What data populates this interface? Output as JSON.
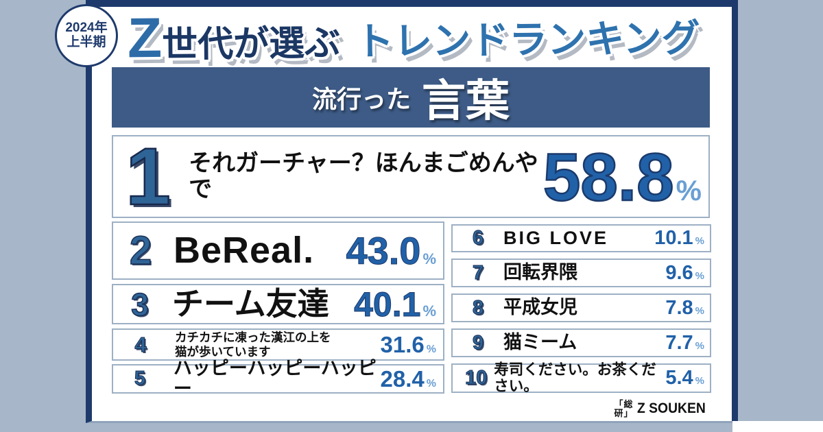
{
  "badge": {
    "line1": "2024年",
    "line2": "上半期"
  },
  "title": {
    "z": "Z",
    "dark": "世代が選ぶ",
    "light": "トレンドランキング"
  },
  "banner": {
    "prefix": "流行った",
    "main": "言葉"
  },
  "ranking": {
    "top": {
      "rank": "1",
      "label": "それガーチャー？ほんまごめんやで",
      "value": "58.8",
      "unit": "%"
    },
    "left": [
      {
        "rank": "2",
        "label": "BeReal.",
        "value": "43.0",
        "unit": "%"
      },
      {
        "rank": "3",
        "label": "チーム友達",
        "value": "40.1",
        "unit": "%"
      },
      {
        "rank": "4",
        "label": "カチカチに凍った漢江の上を",
        "label2": "猫が歩いています",
        "value": "31.6",
        "unit": "%"
      },
      {
        "rank": "5",
        "label": "ハッピーハッピーハッピー",
        "value": "28.4",
        "unit": "%"
      }
    ],
    "right": [
      {
        "rank": "6",
        "label": "BIG LOVE",
        "value": "10.1",
        "unit": "%"
      },
      {
        "rank": "7",
        "label": "回転界隈",
        "value": "9.6",
        "unit": "%"
      },
      {
        "rank": "8",
        "label": "平成女児",
        "value": "7.8",
        "unit": "%"
      },
      {
        "rank": "9",
        "label": "猫ミーム",
        "value": "7.7",
        "unit": "%"
      },
      {
        "rank": "10",
        "label": "寿司ください。お茶ください。",
        "value": "5.4",
        "unit": "%"
      }
    ]
  },
  "logo": {
    "mark_top": "「総",
    "mark_bottom": "研」",
    "text": "Z SOUKEN"
  },
  "colors": {
    "background": "#a7b7c9",
    "frame_navy": "#1e3a6c",
    "banner_blue": "#3d5b86",
    "rank_blue": "#2f6496",
    "value_blue": "#2161a8",
    "percent_light_blue": "#6a9fd4",
    "row_border": "#9db0c4",
    "title_dark": "#1b3764",
    "title_light": "#2e72ae"
  },
  "chart_data": {
    "type": "table",
    "title": "2024年上半期 Z世代が選ぶトレンドランキング 流行った言葉",
    "columns": [
      "rank",
      "word",
      "percent"
    ],
    "categories": [
      "それガーチャー？ほんまごめんやで",
      "BeReal.",
      "チーム友達",
      "カチカチに凍った漢江の上を猫が歩いています",
      "ハッピーハッピーハッピー",
      "BIG LOVE",
      "回転界隈",
      "平成女児",
      "猫ミーム",
      "寿司ください。お茶ください。"
    ],
    "values": [
      58.8,
      43.0,
      40.1,
      31.6,
      28.4,
      10.1,
      9.6,
      7.8,
      7.7,
      5.4
    ],
    "unit": "%"
  }
}
